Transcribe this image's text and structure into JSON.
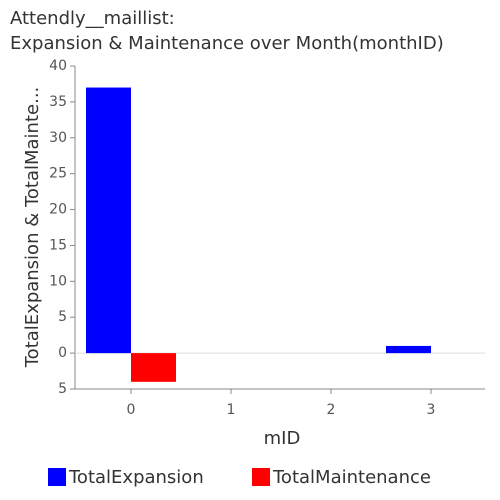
{
  "chart_data": {
    "type": "bar",
    "title": [
      "Attendly__maillist:",
      "Expansion & Maintenance over Month(monthID)"
    ],
    "x_label": "mID",
    "y_label": "TotalExpansion & TotalMainte...",
    "x": [
      0,
      1,
      2,
      3
    ],
    "series": [
      {
        "name": "TotalExpansion",
        "color": "#0000ff",
        "values": [
          37,
          0,
          0,
          1
        ]
      },
      {
        "name": "TotalMaintenance",
        "color": "#ff0000",
        "values": [
          -4,
          0,
          0,
          0
        ]
      }
    ],
    "xlim": [
      -0.56,
      3.54
    ],
    "xticks": [
      0,
      1,
      2,
      3
    ],
    "ylim": [
      -5,
      40
    ],
    "yticks": [
      40,
      35,
      30,
      25,
      20,
      15,
      10,
      5,
      0,
      {
        "value": -5,
        "label": "5"
      }
    ],
    "legend": "bottom"
  }
}
